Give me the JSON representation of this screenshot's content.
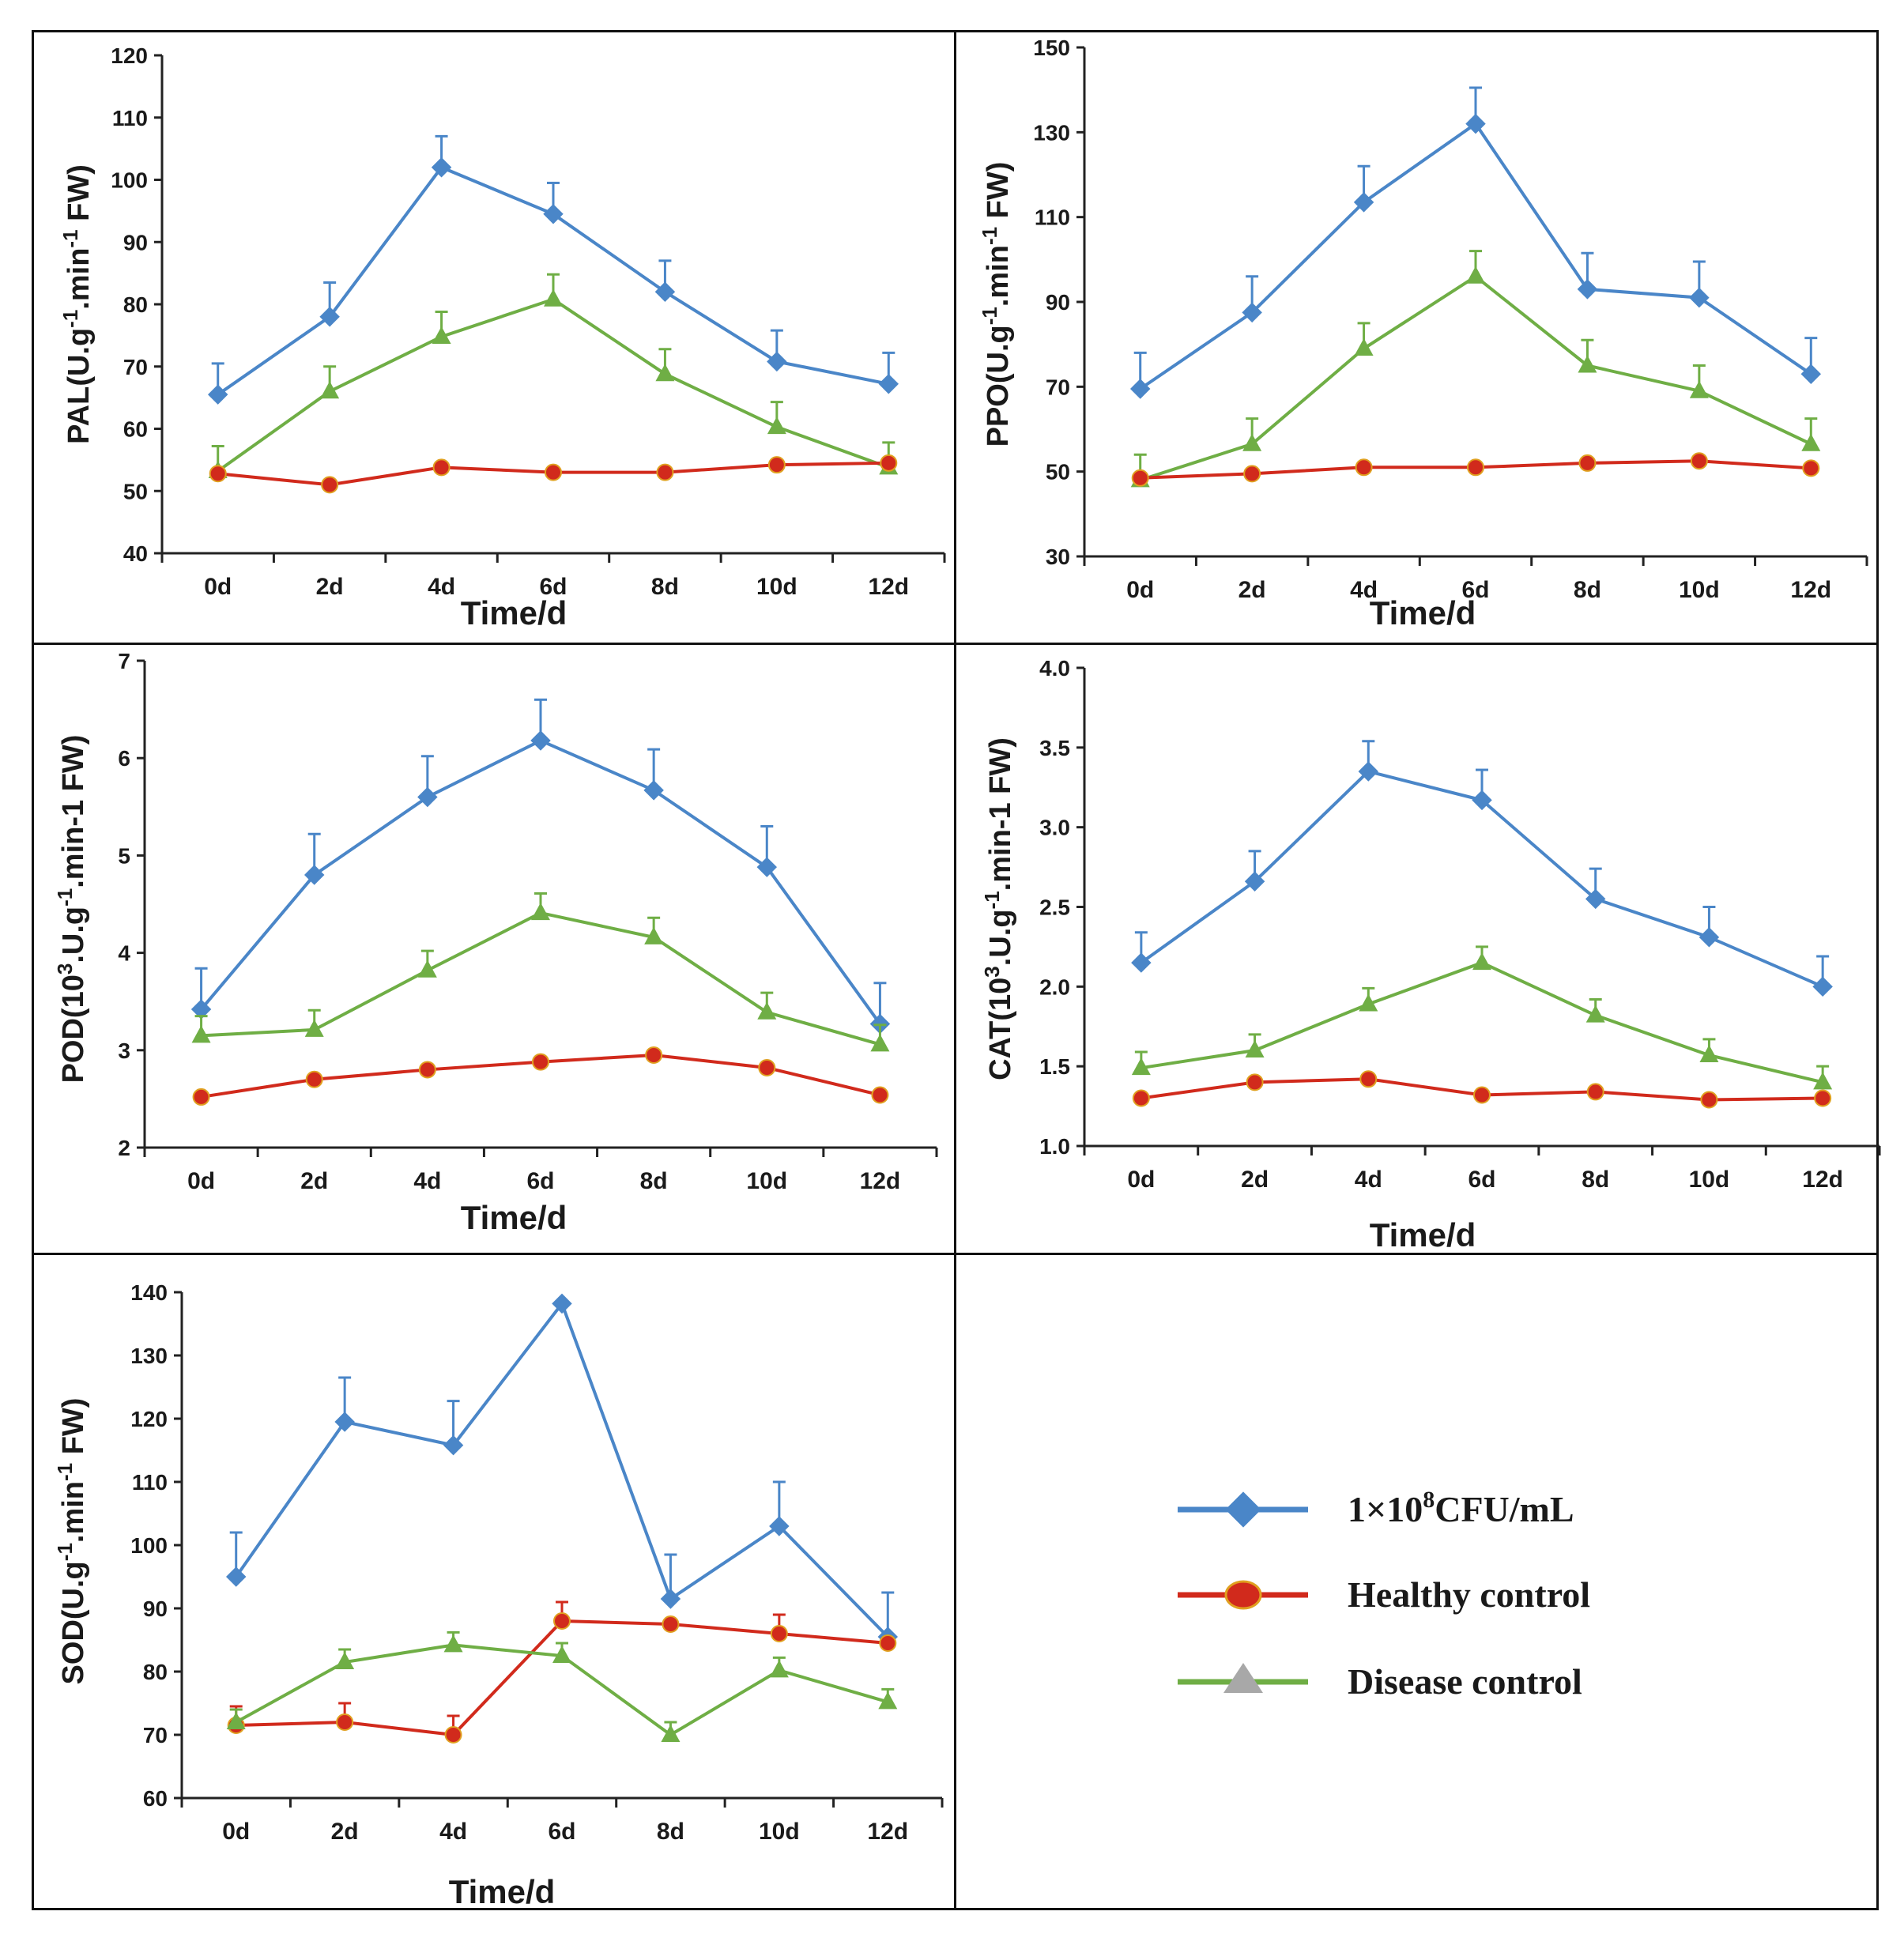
{
  "colors": {
    "treated": "#4a86c8",
    "healthy": "#d12a1c",
    "disease": "#6fae45",
    "marker_gray": "#a8a8a8",
    "axis": "#222222"
  },
  "legend": {
    "treated_label": "1×10",
    "treated_exp": "8",
    "treated_unit": "CFU/mL",
    "healthy_label": "Healthy control",
    "disease_label": "Disease control"
  },
  "chart_data": [
    {
      "id": "pal",
      "type": "line",
      "xlabel": "Time/d",
      "ylabel_main": "PAL(U.g",
      "ylabel_exp": "-1",
      "ylabel_mid": ".min",
      "ylabel_exp2": "-1",
      "ylabel_end": " FW)",
      "categories": [
        "0d",
        "2d",
        "4d",
        "6d",
        "8d",
        "10d",
        "12d"
      ],
      "ylim": [
        40,
        120
      ],
      "yticks": [
        "40",
        "50",
        "60",
        "70",
        "80",
        "90",
        "100",
        "110",
        "120"
      ],
      "series": [
        {
          "key": "treated",
          "name": "1×10^8CFU/mL",
          "values": [
            65.5,
            78,
            102,
            94.5,
            82,
            70.8,
            67.2
          ],
          "errors": [
            5,
            5.5,
            5,
            5,
            5,
            5,
            5
          ]
        },
        {
          "key": "disease",
          "name": "Disease control",
          "values": [
            53.2,
            66,
            74.8,
            80.8,
            68.8,
            60.3,
            53.8
          ],
          "errors": [
            4,
            4,
            4,
            4,
            4,
            4,
            4
          ]
        },
        {
          "key": "healthy",
          "name": "Healthy control",
          "values": [
            52.8,
            51,
            53.8,
            53,
            53,
            54.2,
            54.5
          ],
          "errors": [
            0,
            0,
            0,
            0,
            0,
            0,
            0
          ]
        }
      ]
    },
    {
      "id": "ppo",
      "type": "line",
      "xlabel": "Time/d",
      "ylabel_main": "PPO(U.g",
      "ylabel_exp": "-1",
      "ylabel_mid": ".min",
      "ylabel_exp2": "-1",
      "ylabel_end": " FW)",
      "categories": [
        "0d",
        "2d",
        "4d",
        "6d",
        "8d",
        "10d",
        "12d"
      ],
      "ylim": [
        30,
        150
      ],
      "yticks": [
        "30",
        "50",
        "70",
        "90",
        "110",
        "130",
        "150"
      ],
      "series": [
        {
          "key": "treated",
          "name": "1×10^8CFU/mL",
          "values": [
            69.5,
            87.5,
            113.5,
            132,
            93,
            91,
            73
          ],
          "errors": [
            8.5,
            8.5,
            8.5,
            8.5,
            8.5,
            8.5,
            8.5
          ]
        },
        {
          "key": "disease",
          "name": "Disease control",
          "values": [
            48,
            56.5,
            79,
            96,
            75,
            69,
            56.5
          ],
          "errors": [
            6,
            6,
            6,
            6,
            6,
            6,
            6
          ]
        },
        {
          "key": "healthy",
          "name": "Healthy control",
          "values": [
            48.5,
            49.5,
            51,
            51,
            52,
            52.5,
            50.8
          ],
          "errors": [
            0,
            0,
            0,
            0,
            0,
            0,
            0
          ]
        }
      ]
    },
    {
      "id": "pod",
      "type": "line",
      "xlabel": "Time/d",
      "ylabel_main": "POD(10",
      "ylabel_exp": "3",
      "ylabel_mid": ".U.g",
      "ylabel_exp2": "-1",
      "ylabel_end": ".min-1 FW)",
      "categories": [
        "0d",
        "2d",
        "4d",
        "6d",
        "8d",
        "10d",
        "12d"
      ],
      "ylim": [
        2,
        7
      ],
      "yticks": [
        "2",
        "3",
        "4",
        "5",
        "6",
        "7"
      ],
      "series": [
        {
          "key": "treated",
          "name": "1×10^8CFU/mL",
          "values": [
            3.42,
            4.8,
            5.6,
            6.18,
            5.67,
            4.88,
            3.27
          ],
          "errors": [
            0.42,
            0.42,
            0.42,
            0.42,
            0.42,
            0.42,
            0.42
          ]
        },
        {
          "key": "disease",
          "name": "Disease control",
          "values": [
            3.15,
            3.21,
            3.82,
            4.41,
            4.16,
            3.39,
            3.06
          ],
          "errors": [
            0.2,
            0.2,
            0.2,
            0.2,
            0.2,
            0.2,
            0.2
          ]
        },
        {
          "key": "healthy",
          "name": "Healthy control",
          "values": [
            2.52,
            2.7,
            2.8,
            2.88,
            2.95,
            2.82,
            2.54
          ],
          "errors": [
            0,
            0,
            0,
            0,
            0,
            0,
            0
          ]
        }
      ]
    },
    {
      "id": "cat",
      "type": "line",
      "xlabel": "Time/d",
      "ylabel_main": "CAT(10",
      "ylabel_exp": "3",
      "ylabel_mid": ".U.g",
      "ylabel_exp2": "-1",
      "ylabel_end": ".min-1 FW)",
      "categories": [
        "0d",
        "2d",
        "4d",
        "6d",
        "8d",
        "10d",
        "12d"
      ],
      "ylim": [
        1.0,
        4.0
      ],
      "yticks": [
        "1.0",
        "1.5",
        "2.0",
        "2.5",
        "3.0",
        "3.5",
        "4.0"
      ],
      "series": [
        {
          "key": "treated",
          "name": "1×10^8CFU/mL",
          "values": [
            2.15,
            2.66,
            3.35,
            3.17,
            2.55,
            2.31,
            2.0
          ],
          "errors": [
            0.19,
            0.19,
            0.19,
            0.19,
            0.19,
            0.19,
            0.19
          ]
        },
        {
          "key": "disease",
          "name": "Disease control",
          "values": [
            1.49,
            1.6,
            1.89,
            2.15,
            1.82,
            1.57,
            1.4
          ],
          "errors": [
            0.1,
            0.1,
            0.1,
            0.1,
            0.1,
            0.1,
            0.1
          ]
        },
        {
          "key": "healthy",
          "name": "Healthy control",
          "values": [
            1.3,
            1.4,
            1.42,
            1.32,
            1.34,
            1.29,
            1.3
          ],
          "errors": [
            0,
            0,
            0,
            0,
            0,
            0,
            0
          ]
        }
      ]
    },
    {
      "id": "sod",
      "type": "line",
      "xlabel": "Time/d",
      "ylabel_main": "SOD(U.g",
      "ylabel_exp": "-1",
      "ylabel_mid": ".min",
      "ylabel_exp2": "-1",
      "ylabel_end": " FW)",
      "categories": [
        "0d",
        "2d",
        "4d",
        "6d",
        "8d",
        "10d",
        "12d"
      ],
      "ylim": [
        60,
        140
      ],
      "yticks": [
        "60",
        "70",
        "80",
        "90",
        "100",
        "110",
        "120",
        "130",
        "140"
      ],
      "series": [
        {
          "key": "treated",
          "name": "1×10^8CFU/mL",
          "values": [
            95,
            119.5,
            115.8,
            138.2,
            91.5,
            103,
            85.5
          ],
          "errors": [
            7,
            7,
            7,
            0,
            7,
            7,
            7
          ]
        },
        {
          "key": "healthy",
          "name": "Healthy control",
          "values": [
            71.5,
            72,
            70,
            88,
            87.5,
            86,
            84.5
          ],
          "errors": [
            3,
            3,
            3,
            3,
            0,
            3,
            0
          ]
        },
        {
          "key": "disease",
          "name": "Disease control",
          "values": [
            72,
            81.5,
            84.2,
            82.5,
            70,
            80.2,
            75.2
          ],
          "errors": [
            2,
            2,
            2,
            2,
            2,
            2,
            2
          ]
        }
      ]
    }
  ]
}
